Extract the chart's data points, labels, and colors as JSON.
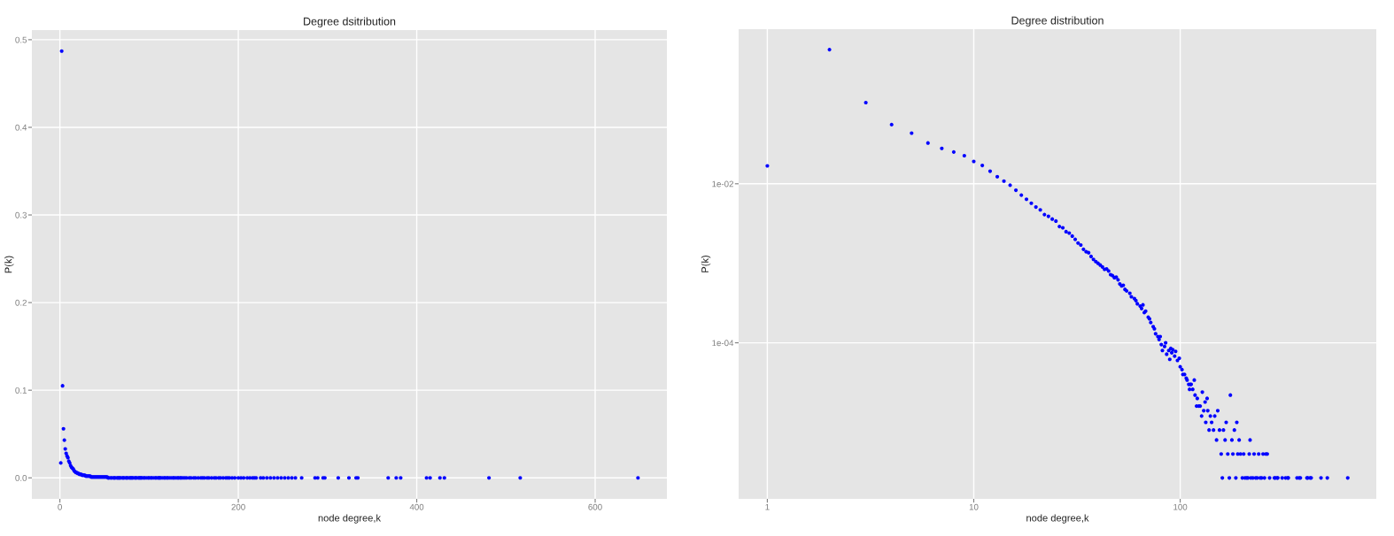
{
  "chart_data": [
    {
      "type": "scatter",
      "title": "Degree dsitribution",
      "xlabel": "node degree,k",
      "ylabel": "P(k)",
      "xlim": [
        -31.4,
        680.4
      ],
      "ylim": [
        -0.024,
        0.511
      ],
      "xticks": [
        0,
        200,
        400,
        600
      ],
      "yticks": [
        {
          "value": 0,
          "label": "0.0"
        },
        0.1,
        0.2,
        0.3,
        0.4,
        0.5
      ],
      "grid": true,
      "marker": "circle",
      "series": [
        {
          "color": "#0000ff",
          "x": [
            1,
            2,
            3,
            4,
            5,
            6,
            7,
            8,
            9,
            10,
            11,
            12,
            13,
            14,
            15,
            16,
            17,
            18,
            19,
            20,
            21,
            22,
            23,
            24,
            25,
            26,
            27,
            28,
            29,
            30,
            31,
            32,
            33,
            34,
            35,
            36,
            37,
            38,
            39,
            40,
            41,
            42,
            43,
            44,
            45,
            46,
            47,
            48,
            49,
            50,
            51,
            52,
            53,
            54,
            55,
            57,
            58,
            60,
            61,
            62,
            64,
            65,
            66,
            67,
            68,
            70,
            71,
            72,
            74,
            75,
            76,
            78,
            79,
            80,
            81,
            82,
            84,
            85,
            86,
            88,
            89,
            90,
            91,
            92,
            94,
            95,
            97,
            99,
            100,
            102,
            103,
            105,
            107,
            108,
            110,
            111,
            112,
            113,
            115,
            117,
            118,
            120,
            121,
            123,
            125,
            127,
            128,
            130,
            132,
            133,
            135,
            136,
            138,
            140,
            142,
            145,
            147,
            150,
            152,
            155,
            158,
            160,
            162,
            165,
            167,
            170,
            173,
            175,
            178,
            180,
            183,
            186,
            188,
            190,
            193,
            196,
            200,
            203,
            206,
            210,
            213,
            216,
            218,
            220,
            225,
            228,
            232,
            236,
            240,
            244,
            248,
            252,
            256,
            260,
            264,
            271,
            286,
            289,
            295,
            297,
            312,
            324,
            332,
            334,
            368,
            377,
            382,
            411,
            415,
            426,
            431,
            481,
            516,
            648
          ],
          "values": [
            0.017,
            0.487,
            0.105,
            0.056,
            0.043,
            0.033,
            0.028,
            0.025,
            0.023,
            0.019,
            0.017,
            0.014,
            0.012,
            0.011,
            0.01,
            0.008,
            0.007,
            0.006,
            0.006,
            0.005,
            0.005,
            0.004,
            0.004,
            0.004,
            0.003,
            0.003,
            0.003,
            0.003,
            0.002,
            0.002,
            0.002,
            0.002,
            0.002,
            0.002,
            0.001,
            0.001,
            0.001,
            0.001,
            0.001,
            0.001,
            0.001,
            0.001,
            0.001,
            0.001,
            0.001,
            0.001,
            0.001,
            0.001,
            0.001,
            0.001,
            0.001,
            0.001,
            0.001,
            0,
            0,
            0,
            0,
            0,
            0,
            0,
            0,
            0,
            0,
            0,
            0,
            0,
            0,
            0,
            0,
            0,
            0,
            0,
            0,
            0,
            0,
            0,
            0,
            0,
            0,
            0,
            0,
            0,
            0,
            0,
            0,
            0,
            0,
            0,
            0,
            0,
            0,
            0,
            0,
            0,
            0,
            0,
            0,
            0,
            0,
            0,
            0,
            0,
            0,
            0,
            0,
            0,
            0,
            0,
            0,
            0,
            0,
            0,
            0,
            0,
            0,
            0,
            0,
            0,
            0,
            0,
            0,
            0,
            0,
            0,
            0,
            0,
            0,
            0,
            0,
            0,
            0,
            0,
            0,
            0,
            0,
            0,
            0,
            0,
            0,
            0,
            0,
            0,
            0,
            0,
            0,
            0,
            0,
            0,
            0,
            0,
            0,
            0,
            0,
            0,
            0,
            0,
            0,
            0,
            0,
            0,
            0,
            0,
            0,
            0,
            0,
            0,
            0,
            0,
            0,
            0,
            0,
            0,
            0,
            0
          ]
        }
      ]
    },
    {
      "type": "scatter",
      "title": "Degree distribution",
      "xlabel": "node degree,k",
      "ylabel": "P(k)",
      "log": "xy",
      "xlim": [
        0.726,
        891
      ],
      "ylim": [
        1.09e-06,
        0.88
      ],
      "xticks": [
        1,
        10,
        100
      ],
      "yticks": [
        {
          "value": 0.01,
          "label": "1e-02"
        },
        {
          "value": 0.0001,
          "label": "1e-04"
        }
      ],
      "grid": true,
      "marker": "circle",
      "series": [
        {
          "color": "#0000ff",
          "x": [
            1,
            2,
            3,
            4,
            5,
            6,
            7,
            8,
            9,
            10,
            11,
            12,
            13,
            14,
            15,
            16,
            17,
            18,
            19,
            20,
            21,
            22,
            23,
            24,
            25,
            26,
            27,
            28,
            29,
            30,
            31,
            32,
            33,
            34,
            35,
            36,
            37,
            38,
            39,
            40,
            41,
            42,
            43,
            44,
            45,
            46,
            47,
            48,
            49,
            50,
            51,
            52,
            53,
            54,
            55,
            57,
            58,
            60,
            61,
            62,
            64,
            65,
            66,
            67,
            68,
            70,
            71,
            72,
            74,
            75,
            76,
            78,
            79,
            80,
            81,
            82,
            84,
            85,
            86,
            88,
            89,
            90,
            91,
            92,
            94,
            95,
            97,
            99,
            100,
            102,
            103,
            105,
            107,
            108,
            110,
            111,
            112,
            113,
            115,
            117,
            118,
            120,
            121,
            123,
            125,
            127,
            128,
            130,
            132,
            133,
            135,
            136,
            138,
            140,
            142,
            145,
            147,
            150,
            152,
            155,
            158,
            160,
            162,
            165,
            167,
            170,
            173,
            175,
            178,
            180,
            183,
            186,
            188,
            190,
            193,
            196,
            200,
            203,
            206,
            210,
            213,
            216,
            218,
            220,
            225,
            228,
            232,
            236,
            240,
            244,
            248,
            252,
            256,
            260,
            264,
            271,
            286,
            289,
            295,
            297,
            312,
            324,
            332,
            334,
            368,
            377,
            382,
            411,
            415,
            426,
            431,
            481,
            516,
            648
          ],
          "values": [
            0.0168,
            0.487,
            0.105,
            0.0555,
            0.0434,
            0.0326,
            0.0279,
            0.0251,
            0.0226,
            0.0191,
            0.017,
            0.0144,
            0.0123,
            0.0108,
            0.0096,
            0.0083,
            0.0072,
            0.0064,
            0.0057,
            0.0051,
            0.0047,
            0.0041,
            0.0039,
            0.0036,
            0.0034,
            0.0029,
            0.0028,
            0.0025,
            0.0024,
            0.0022,
            0.002,
            0.0018,
            0.0017,
            0.0015,
            0.0014,
            0.00136,
            0.00122,
            0.00112,
            0.00105,
            0.001,
            0.00095,
            0.0009,
            0.00084,
            0.00085,
            0.0008,
            0.00072,
            0.0007,
            0.00066,
            0.00067,
            0.00062,
            0.00055,
            0.00052,
            0.00053,
            0.00047,
            0.00045,
            0.00042,
            0.00038,
            0.00036,
            0.00034,
            0.00031,
            0.00029,
            0.00027,
            0.0003,
            0.00024,
            0.00025,
            0.00021,
            0.0002,
            0.00018,
            0.00016,
            0.00015,
            0.00013,
            0.00012,
            0.00011,
            0.00012,
            9.5e-05,
            8e-05,
            9e-05,
            0.0001,
            7.2e-05,
            8e-05,
            6.2e-05,
            8.5e-05,
            7.5e-05,
            8.2e-05,
            6.8e-05,
            7.8e-05,
            6e-05,
            6.4e-05,
            5e-05,
            4.6e-05,
            4e-05,
            4e-05,
            3.6e-05,
            3.4e-05,
            3e-05,
            2.6e-05,
            3e-05,
            3e-05,
            2.6e-05,
            3.4e-05,
            2.2e-05,
            1.6e-05,
            2e-05,
            1.6e-05,
            1.6e-05,
            1.2e-05,
            2.4e-05,
            1.4e-05,
            1.8e-05,
            1e-05,
            2e-05,
            1.4e-05,
            8e-06,
            1.2e-05,
            1e-05,
            8e-06,
            1.2e-05,
            6e-06,
            1.4e-05,
            8e-06,
            4e-06,
            2e-06,
            8e-06,
            6e-06,
            1e-05,
            4e-06,
            2e-06,
            2.2e-05,
            6e-06,
            4e-06,
            8e-06,
            2e-06,
            1e-05,
            4e-06,
            6e-06,
            4e-06,
            2e-06,
            4e-06,
            2e-06,
            2e-06,
            2e-06,
            4e-06,
            6e-06,
            2e-06,
            2e-06,
            4e-06,
            2e-06,
            2e-06,
            4e-06,
            2e-06,
            2e-06,
            4e-06,
            2e-06,
            4e-06,
            4e-06,
            2e-06,
            2e-06,
            2e-06,
            2e-06,
            2e-06,
            2e-06,
            2e-06,
            2e-06,
            2e-06,
            2e-06,
            2e-06,
            2e-06,
            2e-06,
            2e-06,
            2e-06,
            2e-06,
            2e-06,
            2e-06,
            2e-06
          ]
        }
      ]
    }
  ]
}
